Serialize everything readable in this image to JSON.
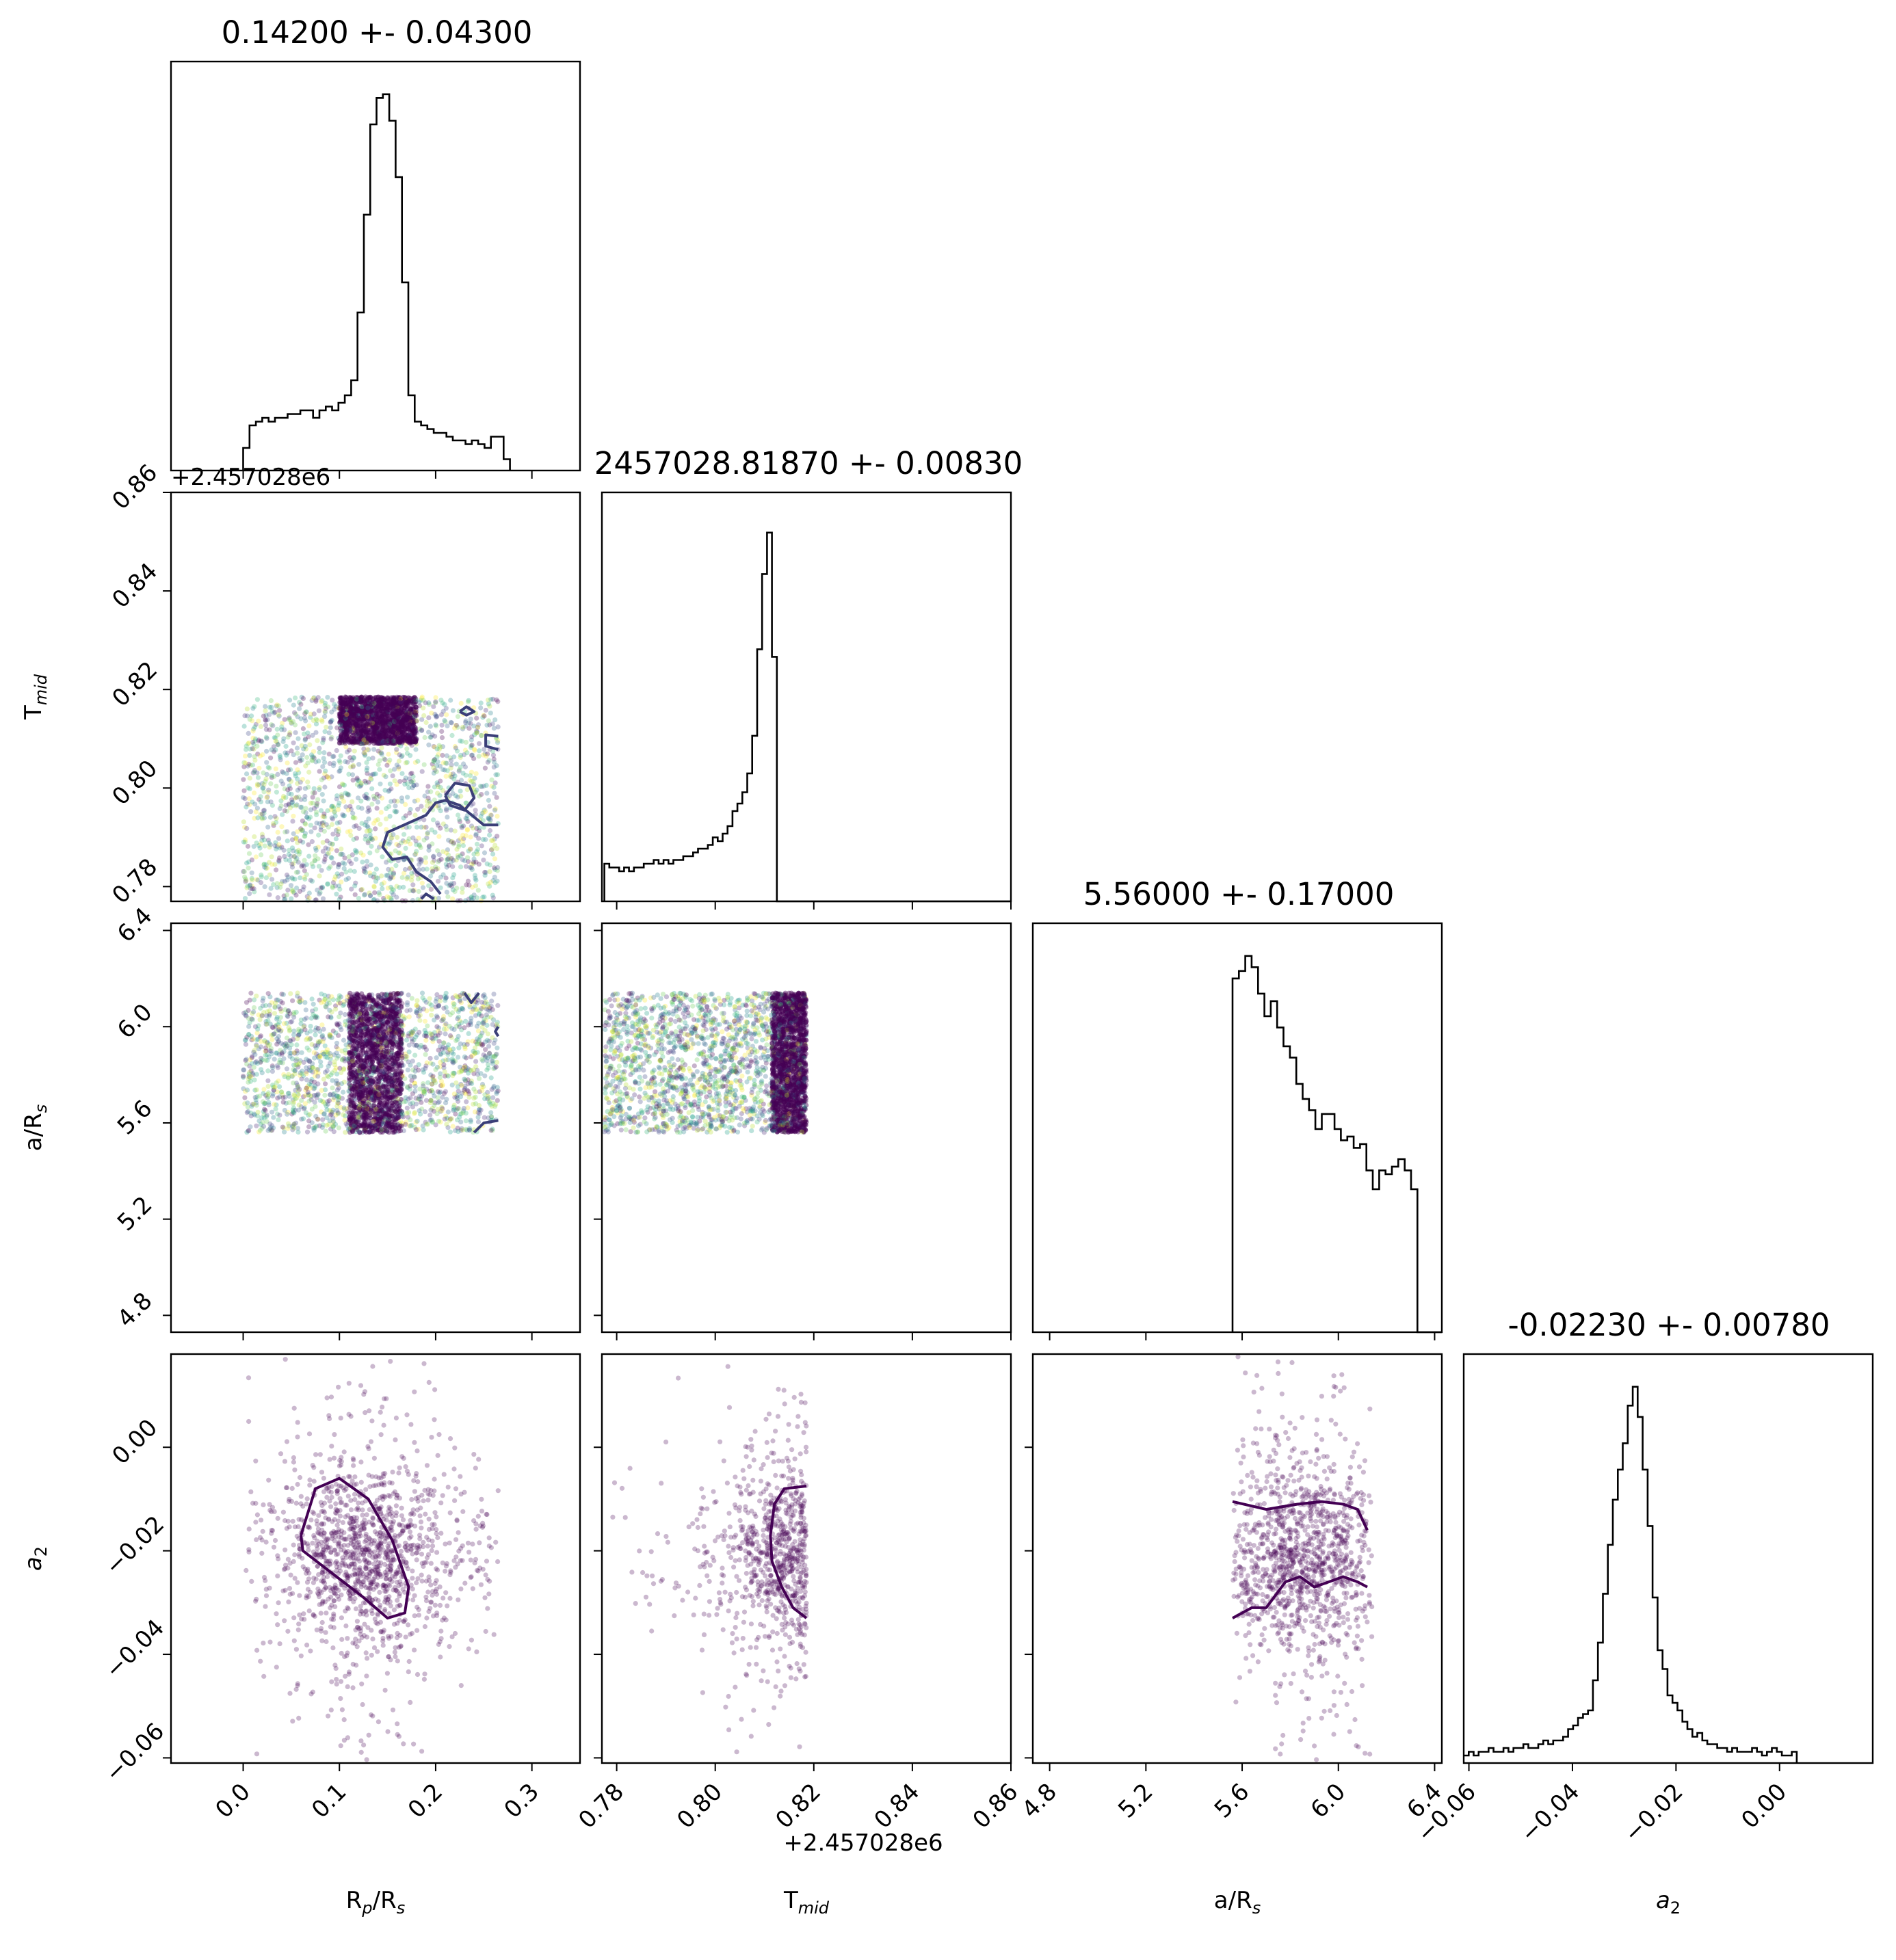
{
  "figure": {
    "kind": "corner plot",
    "parameters": [
      "R_p/R_s",
      "T_mid",
      "a/R_s",
      "a_2"
    ],
    "colors": {
      "axes": "#000000",
      "points_cmap": "viridis",
      "contour": "#440154",
      "contour_upper": "#3b3f78"
    }
  },
  "chart_data": {
    "type": "scatter",
    "subtype": "corner",
    "titles": [
      "0.14200 +- 0.04300",
      "2457028.81870 +- 0.00830",
      "5.56000 +- 0.17000",
      "-0.02230 +- 0.00780"
    ],
    "axis_labels": {
      "x": [
        {
          "main": "R",
          "sub": "p",
          "tail": "/R",
          "sub2": "s"
        },
        {
          "main": "T",
          "sub": "mid",
          "tail": "",
          "sub2": ""
        },
        {
          "main": "a/R",
          "sub": "s",
          "tail": "",
          "sub2": ""
        },
        {
          "main": "a",
          "sub": "2",
          "tail": "",
          "sub2": "",
          "italic": true
        }
      ],
      "y": [
        null,
        {
          "main": "T",
          "sub": "mid",
          "tail": "",
          "sub2": ""
        },
        {
          "main": "a/R",
          "sub": "s",
          "tail": "",
          "sub2": ""
        },
        {
          "main": "a",
          "sub": "2",
          "tail": "",
          "sub2": "",
          "italic": true
        }
      ]
    },
    "ranges": [
      [
        -0.075,
        0.35
      ],
      [
        0.777,
        0.86
      ],
      [
        4.73,
        6.43
      ],
      [
        -0.061,
        0.018
      ]
    ],
    "ticks": [
      {
        "values": [
          0.0,
          0.1,
          0.2,
          0.3
        ],
        "labels": [
          "0.0",
          "0.1",
          "0.2",
          "0.3"
        ]
      },
      {
        "values": [
          0.78,
          0.8,
          0.82,
          0.84,
          0.86
        ],
        "labels": [
          "0.78",
          "0.80",
          "0.82",
          "0.84",
          "0.86"
        ]
      },
      {
        "values": [
          4.8,
          5.2,
          5.6,
          6.0,
          6.4
        ],
        "labels": [
          "4.8",
          "5.2",
          "5.6",
          "6.0",
          "6.4"
        ]
      },
      {
        "values": [
          -0.06,
          -0.04,
          -0.02,
          0.0
        ],
        "labels": [
          "−0.06",
          "−0.04",
          "−0.02",
          "0.00"
        ]
      }
    ],
    "offset_text": "+2.457028e6",
    "offset_axes": {
      "x": 1,
      "y": 1
    },
    "histograms": [
      {
        "param": "R_p/R_s",
        "bin_start": 0.0,
        "bin_width": 0.0066,
        "peak": 1.0,
        "values": [
          0.06,
          0.12,
          0.13,
          0.14,
          0.13,
          0.14,
          0.14,
          0.15,
          0.15,
          0.16,
          0.16,
          0.14,
          0.16,
          0.17,
          0.16,
          0.18,
          0.2,
          0.24,
          0.42,
          0.68,
          0.92,
          0.99,
          1.0,
          0.93,
          0.78,
          0.5,
          0.2,
          0.13,
          0.12,
          0.11,
          0.1,
          0.1,
          0.09,
          0.08,
          0.08,
          0.07,
          0.08,
          0.07,
          0.06,
          0.09,
          0.09,
          0.03
        ]
      },
      {
        "param": "T_mid",
        "bin_start": 0.7775,
        "bin_width": 0.001,
        "peak": 1.0,
        "values": [
          0.1,
          0.09,
          0.09,
          0.08,
          0.09,
          0.08,
          0.09,
          0.09,
          0.1,
          0.1,
          0.11,
          0.1,
          0.11,
          0.1,
          0.11,
          0.11,
          0.12,
          0.12,
          0.13,
          0.14,
          0.14,
          0.15,
          0.17,
          0.16,
          0.18,
          0.2,
          0.24,
          0.26,
          0.29,
          0.34,
          0.44,
          0.67,
          0.87,
          0.98,
          0.65,
          0.0
        ]
      },
      {
        "param": "a/R_s",
        "bin_start": 5.56,
        "bin_width": 0.0265,
        "peak": 1.0,
        "values": [
          0.94,
          0.96,
          1.0,
          0.97,
          0.9,
          0.84,
          0.88,
          0.81,
          0.76,
          0.73,
          0.66,
          0.62,
          0.59,
          0.54,
          0.58,
          0.58,
          0.54,
          0.51,
          0.52,
          0.49,
          0.5,
          0.43,
          0.38,
          0.43,
          0.42,
          0.44,
          0.46,
          0.43,
          0.38
        ]
      },
      {
        "param": "a_2",
        "bin_start": -0.061,
        "bin_width": 0.00096,
        "peak": 1.0,
        "values": [
          0.02,
          0.03,
          0.02,
          0.03,
          0.03,
          0.04,
          0.03,
          0.03,
          0.04,
          0.03,
          0.04,
          0.04,
          0.05,
          0.04,
          0.04,
          0.05,
          0.06,
          0.05,
          0.06,
          0.06,
          0.07,
          0.09,
          0.1,
          0.12,
          0.13,
          0.14,
          0.22,
          0.32,
          0.45,
          0.58,
          0.7,
          0.78,
          0.85,
          0.95,
          1.0,
          0.92,
          0.78,
          0.63,
          0.44,
          0.3,
          0.25,
          0.18,
          0.16,
          0.14,
          0.11,
          0.09,
          0.07,
          0.08,
          0.06,
          0.05,
          0.05,
          0.04,
          0.04,
          0.03,
          0.04,
          0.03,
          0.03,
          0.03,
          0.04,
          0.03,
          0.02,
          0.03,
          0.04,
          0.03,
          0.02,
          0.02,
          0.03
        ]
      }
    ],
    "scatter_panels": [
      {
        "row": 1,
        "col": 0,
        "x_param": "R_p/R_s",
        "y_param": "T_mid",
        "n_points": 3200,
        "x_range": [
          0.0,
          0.265
        ],
        "y_range": [
          0.777,
          0.8185
        ],
        "dense_x": [
          0.1,
          0.18
        ],
        "dense_y": [
          0.809,
          0.8185
        ],
        "colored": true
      },
      {
        "row": 2,
        "col": 0,
        "x_param": "R_p/R_s",
        "y_param": "a/R_s",
        "n_points": 3200,
        "x_range": [
          0.0,
          0.265
        ],
        "y_range": [
          5.56,
          6.14
        ],
        "dense_x": [
          0.11,
          0.165
        ],
        "dense_y": [
          5.56,
          6.14
        ],
        "colored": true
      },
      {
        "row": 2,
        "col": 1,
        "x_param": "T_mid",
        "y_param": "a/R_s",
        "n_points": 3200,
        "x_range": [
          0.7775,
          0.8185
        ],
        "y_range": [
          5.56,
          6.14
        ],
        "dense_x": [
          0.8115,
          0.8185
        ],
        "dense_y": [
          5.56,
          6.14
        ],
        "colored": true
      },
      {
        "row": 3,
        "col": 0,
        "x_param": "R_p/R_s",
        "y_param": "a_2",
        "n_points": 1500,
        "x_range": [
          0.0,
          0.265
        ],
        "y_range": [
          -0.061,
          0.018
        ],
        "center": [
          0.125,
          -0.021
        ],
        "spread": [
          0.045,
          0.008
        ]
      },
      {
        "row": 3,
        "col": 1,
        "x_param": "T_mid",
        "y_param": "a_2",
        "n_points": 1500,
        "x_range": [
          0.7775,
          0.8185
        ],
        "y_range": [
          -0.061,
          0.018
        ],
        "center": [
          0.8175,
          -0.021
        ],
        "spread": [
          0.007,
          0.008
        ]
      },
      {
        "row": 3,
        "col": 2,
        "x_param": "a/R_s",
        "y_param": "a_2",
        "n_points": 1500,
        "x_range": [
          5.56,
          6.14
        ],
        "y_range": [
          -0.061,
          0.018
        ],
        "center": [
          5.85,
          -0.0215
        ],
        "spread": [
          0.17,
          0.008
        ]
      }
    ],
    "contours": [
      {
        "row": 3,
        "col": 0,
        "points": [
          [
            0.06,
            -0.017
          ],
          [
            0.075,
            -0.008
          ],
          [
            0.1,
            -0.006
          ],
          [
            0.13,
            -0.01
          ],
          [
            0.155,
            -0.018
          ],
          [
            0.172,
            -0.027
          ],
          [
            0.168,
            -0.032
          ],
          [
            0.15,
            -0.033
          ],
          [
            0.125,
            -0.029
          ],
          [
            0.09,
            -0.024
          ],
          [
            0.062,
            -0.02
          ],
          [
            0.06,
            -0.017
          ]
        ]
      },
      {
        "row": 3,
        "col": 1,
        "points": [
          [
            0.8185,
            -0.0075
          ],
          [
            0.814,
            -0.008
          ],
          [
            0.812,
            -0.011
          ],
          [
            0.8112,
            -0.017
          ],
          [
            0.8115,
            -0.022
          ],
          [
            0.8135,
            -0.027
          ],
          [
            0.8158,
            -0.031
          ],
          [
            0.8185,
            -0.033
          ]
        ]
      },
      {
        "row": 3,
        "col": 2,
        "points": [
          [
            5.56,
            -0.0105
          ],
          [
            5.7,
            -0.012
          ],
          [
            5.83,
            -0.011
          ],
          [
            5.93,
            -0.0105
          ],
          [
            6.02,
            -0.011
          ],
          [
            6.08,
            -0.012
          ],
          [
            6.12,
            -0.016
          ]
        ]
      },
      {
        "row": 3,
        "col": 2,
        "points": [
          [
            5.56,
            -0.033
          ],
          [
            5.64,
            -0.031
          ],
          [
            5.7,
            -0.031
          ],
          [
            5.78,
            -0.026
          ],
          [
            5.84,
            -0.025
          ],
          [
            5.9,
            -0.027
          ],
          [
            5.96,
            -0.026
          ],
          [
            6.02,
            -0.025
          ],
          [
            6.08,
            -0.026
          ],
          [
            6.12,
            -0.027
          ]
        ]
      },
      {
        "row": 1,
        "col": 0,
        "points": [
          [
            0.225,
            0.8155
          ],
          [
            0.232,
            0.8165
          ],
          [
            0.24,
            0.8155
          ],
          [
            0.232,
            0.8148
          ],
          [
            0.225,
            0.8155
          ]
        ]
      },
      {
        "row": 1,
        "col": 0,
        "points": [
          [
            0.265,
            0.8105
          ],
          [
            0.252,
            0.8108
          ],
          [
            0.252,
            0.8085
          ],
          [
            0.265,
            0.8078
          ]
        ]
      },
      {
        "row": 1,
        "col": 0,
        "points": [
          [
            0.21,
            0.7985
          ],
          [
            0.22,
            0.801
          ],
          [
            0.235,
            0.8005
          ],
          [
            0.24,
            0.798
          ],
          [
            0.23,
            0.7955
          ],
          [
            0.215,
            0.7965
          ],
          [
            0.21,
            0.7985
          ]
        ]
      },
      {
        "row": 1,
        "col": 0,
        "points": [
          [
            0.265,
            0.7925
          ],
          [
            0.25,
            0.7925
          ],
          [
            0.225,
            0.7965
          ],
          [
            0.21,
            0.7975
          ],
          [
            0.2,
            0.797
          ],
          [
            0.19,
            0.7945
          ],
          [
            0.15,
            0.791
          ],
          [
            0.145,
            0.788
          ],
          [
            0.155,
            0.7855
          ],
          [
            0.17,
            0.786
          ],
          [
            0.18,
            0.783
          ],
          [
            0.195,
            0.781
          ],
          [
            0.205,
            0.7785
          ]
        ]
      },
      {
        "row": 1,
        "col": 0,
        "points": [
          [
            0.185,
            0.7775
          ],
          [
            0.19,
            0.7785
          ],
          [
            0.198,
            0.7775
          ]
        ]
      },
      {
        "row": 2,
        "col": 0,
        "points": [
          [
            0.23,
            6.14
          ],
          [
            0.237,
            6.1
          ],
          [
            0.245,
            6.14
          ]
        ]
      },
      {
        "row": 2,
        "col": 0,
        "points": [
          [
            0.265,
            6.0
          ],
          [
            0.262,
            5.98
          ],
          [
            0.265,
            5.96
          ]
        ]
      },
      {
        "row": 2,
        "col": 0,
        "points": [
          [
            0.24,
            5.56
          ],
          [
            0.25,
            5.6
          ],
          [
            0.265,
            5.61
          ]
        ]
      }
    ]
  }
}
